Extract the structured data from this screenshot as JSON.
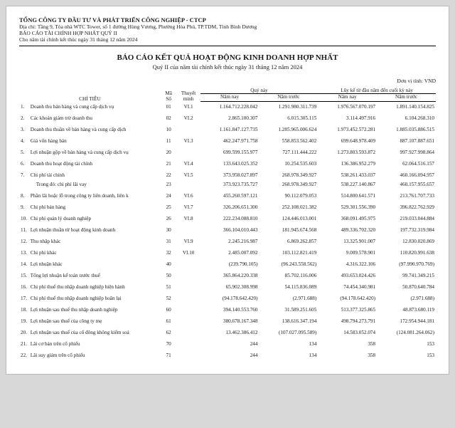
{
  "header": {
    "company": "TỔNG CÔNG TY ĐẦU TƯ VÀ PHÁT TRIỂN CÔNG NGHIỆP - CTCP",
    "address": "Địa chỉ: Tầng 9, Tòa nhà WTC Tower, số 1 đường Hùng Vương, Phường Hòa Phú, TP.TDM, Tỉnh Bình Dương",
    "report_name": "BÁO CÁO TÀI CHÍNH HỢP NHẤT QUÝ II",
    "period": "Cho năm tài chính kết thúc ngày 31 tháng 12 năm 2024"
  },
  "title": "BÁO CÁO KẾT QUẢ HOẠT ĐỘNG KINH DOANH HỢP NHẤT",
  "subtitle": "Quý II của năm tài chính kết thúc ngày 31 tháng 12 năm 2024",
  "unit_label": "Đơn vị tính: VND",
  "columns": {
    "chitieu": "CHỈ TIÊU",
    "maso": "Mã Số",
    "thuyetminh": "Thuyết minh",
    "quynay": "Quý này",
    "namnay": "Năm nay",
    "namtruoc": "Năm trước",
    "luyke": "Lũy kế từ đầu năm đến cuối kỳ này"
  },
  "rows": [
    {
      "n": "1.",
      "label": "Doanh thu bán hàng và cung cấp dịch vụ",
      "ms": "01",
      "tm": "VI.1",
      "c1": "1.164.712.228.042",
      "c2": "1.291.980.311.739",
      "c3": "1.976.567.070.197",
      "c4": "1.891.140.154.825"
    },
    {
      "n": "2.",
      "label": "Các khoản giảm trừ doanh thu",
      "ms": "02",
      "tm": "VI.2",
      "c1": "2.865.100.307",
      "c2": "6.015.305.115",
      "c3": "3.114.497.916",
      "c4": "6.104.268.310"
    },
    {
      "n": "3.",
      "label": "Doanh thu thuần về bán hàng và cung cấp dịch",
      "ms": "10",
      "tm": "",
      "c1": "1.161.847.127.735",
      "c2": "1.285.965.006.624",
      "c3": "1.973.452.572.281",
      "c4": "1.885.035.886.515"
    },
    {
      "n": "4.",
      "label": "Giá vốn hàng bán",
      "ms": "11",
      "tm": "VI.3",
      "c1": "462.247.971.758",
      "c2": "558.853.562.402",
      "c3": "699.648.978.409",
      "c4": "887.107.887.651"
    },
    {
      "n": "5.",
      "label": "Lợi nhuận gộp về bán hàng và cung cấp dịch vụ",
      "ms": "20",
      "tm": "",
      "c1": "699.599.155.977",
      "c2": "727.111.444.222",
      "c3": "1.273.803.593.872",
      "c4": "997.927.998.864"
    },
    {
      "n": "6.",
      "label": "Doanh thu hoạt động tài chính",
      "ms": "21",
      "tm": "VI.4",
      "c1": "133.643.025.352",
      "c2": "10.254.535.603",
      "c3": "136.386.952.279",
      "c4": "62.064.516.157"
    },
    {
      "n": "7.",
      "label": "Chi phí tài chính",
      "ms": "22",
      "tm": "VI.5",
      "c1": "373.958.027.897",
      "c2": "268.978.349.927",
      "c3": "538.261.433.037",
      "c4": "460.166.094.957"
    },
    {
      "n": "",
      "label": "Trong đó: chi phí lãi vay",
      "ms": "23",
      "tm": "",
      "c1": "373.923.735.727",
      "c2": "268.978.349.927",
      "c3": "538.227.140.867",
      "c4": "460.157.955.657",
      "indent": true
    },
    {
      "n": "8.",
      "label": "Phần lãi hoặc lỗ trong công ty liên doanh, liên k",
      "ms": "24",
      "tm": "VI.6",
      "c1": "455.260.597.121",
      "c2": "90.112.079.053",
      "c3": "514.800.641.571",
      "c4": "213.761.707.733"
    },
    {
      "n": "9.",
      "label": "Chi phí bán hàng",
      "ms": "25",
      "tm": "VI.7",
      "c1": "326.206.651.300",
      "c2": "252.108.021.382",
      "c3": "529.301.556.390",
      "c4": "396.822.762.929"
    },
    {
      "n": "10.",
      "label": "Chi phí quản lý doanh nghiệp",
      "ms": "26",
      "tm": "VI.8",
      "c1": "222.234.088.810",
      "c2": "124.446.013.001",
      "c3": "368.091.495.975",
      "c4": "219.033.044.884"
    },
    {
      "n": "11.",
      "label": "Lợi nhuận thuần từ hoạt động kinh doanh",
      "ms": "30",
      "tm": "",
      "c1": "366.104.010.443",
      "c2": "181.945.674.568",
      "c3": "489.336.702.320",
      "c4": "197.732.319.984"
    },
    {
      "n": "12.",
      "label": "Thu nhập khác",
      "ms": "31",
      "tm": "VI.9",
      "c1": "2.245.216.987",
      "c2": "6.869.262.857",
      "c3": "13.325.901.007",
      "c4": "12.830.020.869"
    },
    {
      "n": "13.",
      "label": "Chi phí khác",
      "ms": "32",
      "tm": "VI.10",
      "c1": "2.485.007.092",
      "c2": "103.112.821.419",
      "c3": "9.009.578.901",
      "c4": "110.820.991.638"
    },
    {
      "n": "14.",
      "label": "Lợi nhuận khác",
      "ms": "40",
      "tm": "",
      "c1": "(239.790.105)",
      "c2": "(96.243.558.562)",
      "c3": "4.316.322.106",
      "c4": "(97.990.970.769)"
    },
    {
      "n": "15.",
      "label": "Tổng lợi nhuận kế toán trước thuế",
      "ms": "50",
      "tm": "",
      "c1": "365.864.220.338",
      "c2": "85.702.116.006",
      "c3": "493.653.024.426",
      "c4": "99.741.349.215"
    },
    {
      "n": "16.",
      "label": "Chi phí thuế thu nhập doanh nghiệp hiện hành",
      "ms": "51",
      "tm": "",
      "c1": "65.902.308.998",
      "c2": "54.115.836.089",
      "c3": "74.454.340.981",
      "c4": "50.870.640.784"
    },
    {
      "n": "17.",
      "label": "Chi phí thuế thu nhập doanh nghiệp hoãn lại",
      "ms": "52",
      "tm": "",
      "c1": "(94.178.642.420)",
      "c2": "(2.971.688)",
      "c3": "(94.178.642.420)",
      "c4": "(2.971.688)"
    },
    {
      "n": "18.",
      "label": "Lợi nhuận sau thuế thu nhập doanh nghiệp",
      "ms": "60",
      "tm": "",
      "c1": "394.140.553.760",
      "c2": "31.589.251.605",
      "c3": "513.377.325.865",
      "c4": "48.873.680.119"
    },
    {
      "n": "19.",
      "label": "Lợi nhuận sau thuế của công ty mẹ",
      "ms": "61",
      "tm": "",
      "c1": "380.678.167.348",
      "c2": "138.616.347.194",
      "c3": "498.794.273.791",
      "c4": "172.954.944.181"
    },
    {
      "n": "20.",
      "label": "Lợi nhuận sau thuế của cổ đông không kiểm soá",
      "ms": "62",
      "tm": "",
      "c1": "13.462.386.412",
      "c2": "(107.027.095.589)",
      "c3": "14.583.052.074",
      "c4": "(124.081.264.062)"
    },
    {
      "n": "21.",
      "label": "Lãi cơ bản trên cổ phiếu",
      "ms": "70",
      "tm": "",
      "c1": "244",
      "c2": "134",
      "c3": "358",
      "c4": "153"
    },
    {
      "n": "22.",
      "label": "Lãi suy giảm trên cổ phiếu",
      "ms": "71",
      "tm": "",
      "c1": "244",
      "c2": "134",
      "c3": "358",
      "c4": "153"
    }
  ]
}
